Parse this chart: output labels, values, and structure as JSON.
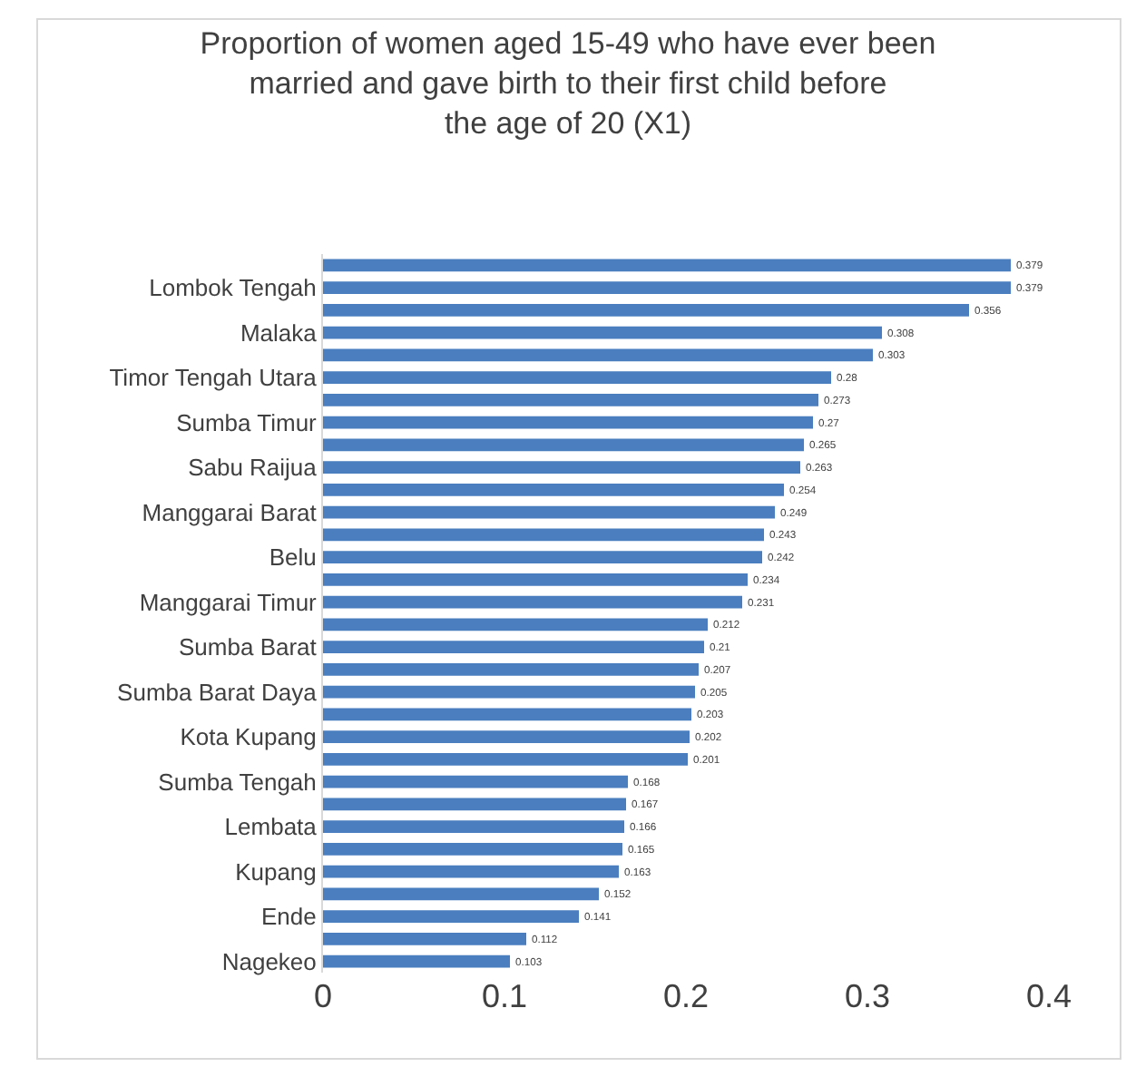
{
  "chart_data": {
    "type": "bar",
    "orientation": "horizontal",
    "title": "Proportion of women aged 15-49 who have ever been married and gave birth to their first child before the age of 20 (X1)",
    "categories": [
      null,
      "Lombok Tengah",
      null,
      "Malaka",
      null,
      "Timor Tengah Utara",
      null,
      "Sumba Timur",
      null,
      "Sabu Raijua",
      null,
      "Manggarai Barat",
      null,
      "Belu",
      null,
      "Manggarai Timur",
      null,
      "Sumba Barat",
      null,
      "Sumba Barat Daya",
      null,
      "Kota Kupang",
      null,
      "Sumba Tengah",
      null,
      "Lembata",
      null,
      "Kupang",
      null,
      "Ende",
      null,
      "Nagekeo"
    ],
    "values": [
      0.379,
      0.379,
      0.356,
      0.308,
      0.303,
      0.28,
      0.273,
      0.27,
      0.265,
      0.263,
      0.254,
      0.249,
      0.243,
      0.242,
      0.234,
      0.231,
      0.212,
      0.21,
      0.207,
      0.205,
      0.203,
      0.202,
      0.201,
      0.168,
      0.167,
      0.166,
      0.165,
      0.163,
      0.152,
      0.141,
      0.112,
      0.103
    ],
    "color": "#4a7ebf",
    "xlim": [
      0,
      0.4
    ],
    "xticks": [
      0,
      0.1,
      0.2,
      0.3,
      0.4
    ],
    "data_labels": true
  }
}
